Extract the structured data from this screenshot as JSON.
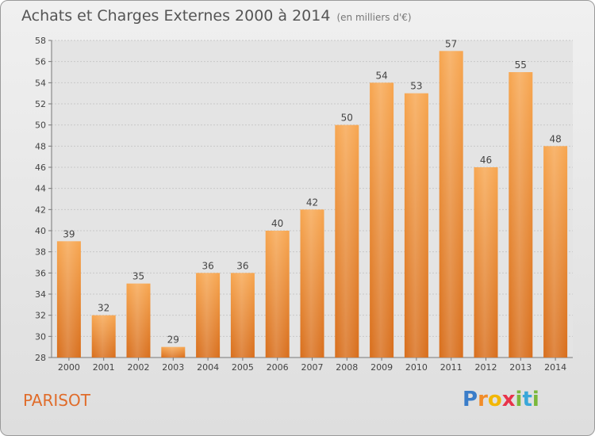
{
  "header": {
    "title": "Achats et Charges Externes 2000 à 2014",
    "unit": "(en milliers d'€)"
  },
  "footer": {
    "commune": "PARISOT",
    "brand": "Proxiti"
  },
  "logo_letters": [
    {
      "ch": "P",
      "color": "#3a7dc9"
    },
    {
      "ch": "r",
      "color": "#f28c28"
    },
    {
      "ch": "o",
      "color": "#f2b705"
    },
    {
      "ch": "x",
      "color": "#e8334a"
    },
    {
      "ch": "i",
      "color": "#7ab83a"
    },
    {
      "ch": "t",
      "color": "#3aa7d9"
    },
    {
      "ch": "i",
      "color": "#7ab83a"
    }
  ],
  "chart_data": {
    "type": "bar",
    "categories": [
      "2000",
      "2001",
      "2002",
      "2003",
      "2004",
      "2005",
      "2006",
      "2007",
      "2008",
      "2009",
      "2010",
      "2011",
      "2012",
      "2013",
      "2014"
    ],
    "values": [
      39,
      32,
      35,
      29,
      36,
      36,
      40,
      42,
      50,
      54,
      53,
      57,
      46,
      55,
      48
    ],
    "ylim": [
      28,
      58
    ],
    "yticks": [
      28,
      30,
      32,
      34,
      36,
      38,
      40,
      42,
      44,
      46,
      48,
      50,
      52,
      54,
      56,
      58
    ],
    "grid": true,
    "bar_color": "#f28c28",
    "value_labels": true
  }
}
